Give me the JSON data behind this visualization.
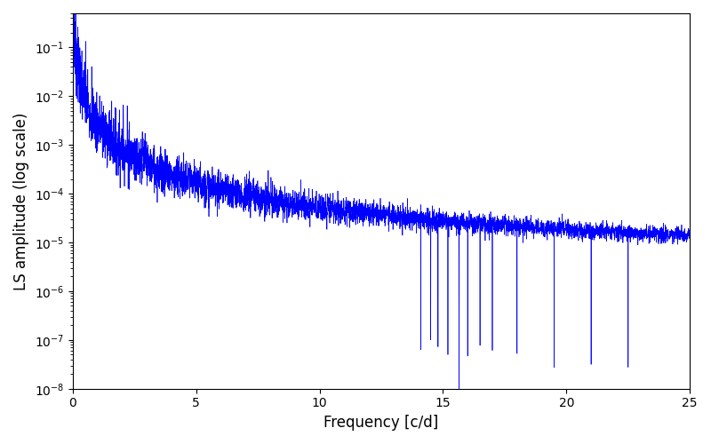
{
  "line_color": "#0000ff",
  "xlabel": "Frequency [c/d]",
  "ylabel": "LS amplitude (log scale)",
  "xlim": [
    0,
    25
  ],
  "ylim_log": [
    -8,
    -0.3
  ],
  "background_color": "#ffffff",
  "line_width": 0.5,
  "n_points": 5000,
  "seed": 7,
  "noise_floor_high": 5e-06,
  "deep_dip_freq": 15.65,
  "deep_dip_val": 1e-08,
  "dip2_freq": 14.5,
  "dip2_val": 1e-07
}
